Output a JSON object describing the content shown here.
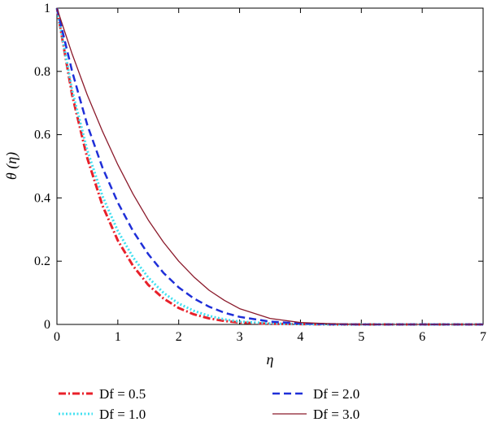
{
  "chart_data": {
    "type": "line",
    "xlabel": "η",
    "ylabel": "θ (η)",
    "xlim": [
      0,
      7
    ],
    "ylim": [
      0,
      1
    ],
    "x_ticks": [
      "0",
      "1",
      "2",
      "3",
      "4",
      "5",
      "6",
      "7"
    ],
    "y_ticks": [
      "0",
      "0.2",
      "0.4",
      "0.6",
      "0.8",
      "1"
    ],
    "grid": false,
    "legend": "bottom",
    "x": [
      0,
      0.25,
      0.5,
      0.75,
      1,
      1.25,
      1.5,
      1.75,
      2,
      2.25,
      2.5,
      2.75,
      3,
      3.5,
      4,
      4.5,
      5,
      5.5,
      6,
      6.5,
      7
    ],
    "series": [
      {
        "name": "Df = 0.5",
        "color": "#e8202a",
        "style": "dashdot",
        "values": [
          1.0,
          0.725,
          0.525,
          0.375,
          0.265,
          0.185,
          0.125,
          0.082,
          0.052,
          0.032,
          0.019,
          0.011,
          0.006,
          0.002,
          0.001,
          0.0,
          0.0,
          0.0,
          0.0,
          0.0,
          0.0
        ]
      },
      {
        "name": "Df = 1.0",
        "color": "#40e0f0",
        "style": "dotted",
        "values": [
          1.0,
          0.74,
          0.55,
          0.405,
          0.295,
          0.212,
          0.148,
          0.1,
          0.066,
          0.043,
          0.027,
          0.016,
          0.009,
          0.003,
          0.001,
          0.0,
          0.0,
          0.0,
          0.0,
          0.0,
          0.0
        ]
      },
      {
        "name": "Df = 2.0",
        "color": "#1f2fd8",
        "style": "dashed",
        "values": [
          1.0,
          0.8,
          0.63,
          0.495,
          0.385,
          0.295,
          0.222,
          0.163,
          0.117,
          0.082,
          0.056,
          0.037,
          0.024,
          0.009,
          0.003,
          0.001,
          0.0,
          0.0,
          0.0,
          0.0,
          0.0
        ]
      },
      {
        "name": "Df = 3.0",
        "color": "#8b1a2b",
        "style": "solid",
        "values": [
          1.0,
          0.855,
          0.725,
          0.61,
          0.505,
          0.412,
          0.33,
          0.26,
          0.2,
          0.15,
          0.108,
          0.076,
          0.05,
          0.019,
          0.006,
          0.002,
          0.0,
          0.0,
          0.0,
          0.0,
          0.0
        ]
      }
    ]
  }
}
